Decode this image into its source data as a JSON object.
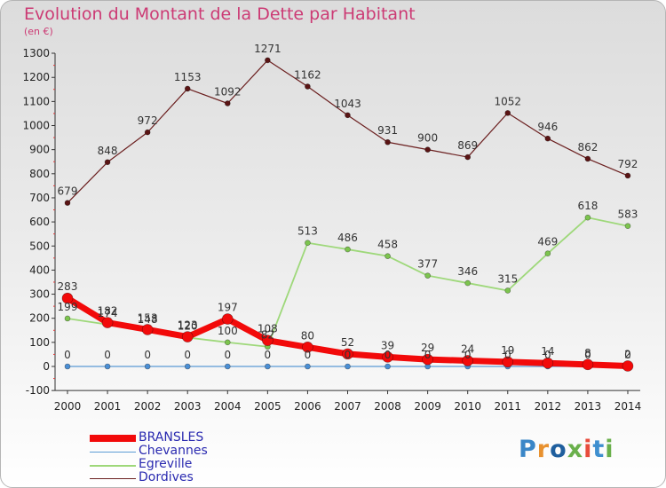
{
  "title": "Evolution du Montant de la Dette par Habitant",
  "unit_label": "(en €)",
  "logo": {
    "text": "Proxiti"
  },
  "chart_data": {
    "type": "line",
    "title": "Evolution du Montant de la Dette par Habitant",
    "subtitle": "(en €)",
    "categories": [
      "2000",
      "2001",
      "2002",
      "2003",
      "2004",
      "2005",
      "2006",
      "2007",
      "2008",
      "2009",
      "2010",
      "2011",
      "2012",
      "2013",
      "2014"
    ],
    "y_ticks": [
      -100,
      0,
      100,
      200,
      300,
      400,
      500,
      600,
      700,
      800,
      900,
      1000,
      1100,
      1200,
      1300
    ],
    "ylim": [
      -100,
      1300
    ],
    "grid": false,
    "legend_position": "bottom-left",
    "series": [
      {
        "name": "Dordives",
        "color": "#6b1f1f",
        "marker": "#5a1414",
        "width": 1.2,
        "values": [
          679,
          848,
          972,
          1153,
          1092,
          1271,
          1162,
          1043,
          931,
          900,
          869,
          1052,
          946,
          862,
          792
        ],
        "labels": [
          "679",
          "848",
          "972",
          "1153",
          "1092",
          "1271",
          "1162",
          "1043",
          "931",
          "900",
          "869",
          "1052",
          "946",
          "862",
          "792"
        ]
      },
      {
        "name": "Egreville",
        "color": "#9ed87a",
        "marker": "#7cc44e",
        "width": 1.8,
        "values": [
          199,
          174,
          148,
          120,
          100,
          82,
          513,
          486,
          458,
          377,
          346,
          315,
          469,
          618,
          583
        ],
        "labels": [
          "199",
          "174",
          "148",
          "120",
          "100",
          "82",
          "513",
          "486",
          "458",
          "377",
          "346",
          "315",
          "469",
          "618",
          "583"
        ]
      },
      {
        "name": "Chevannes",
        "color": "#5b9bd5",
        "marker": "#4a8ed4",
        "width": 1.2,
        "values": [
          0,
          0,
          0,
          0,
          0,
          0,
          0,
          0,
          0,
          0,
          0,
          0,
          0,
          0,
          0
        ],
        "labels": [
          "0",
          "0",
          "0",
          "0",
          "0",
          "0",
          "0",
          "0",
          "0",
          "0",
          "0",
          "0",
          "0",
          "0",
          "0"
        ]
      },
      {
        "name": "BRANSLES",
        "color": "#f20a0a",
        "marker": "#f20a0a",
        "width": 7,
        "values": [
          283,
          182,
          153,
          123,
          197,
          108,
          80,
          52,
          39,
          29,
          24,
          19,
          14,
          8,
          2
        ],
        "labels": [
          "283",
          "182",
          "153",
          "123",
          "197",
          "108",
          "80",
          "52",
          "39",
          "29",
          "24",
          "19",
          "14",
          "8",
          "2"
        ]
      }
    ]
  }
}
